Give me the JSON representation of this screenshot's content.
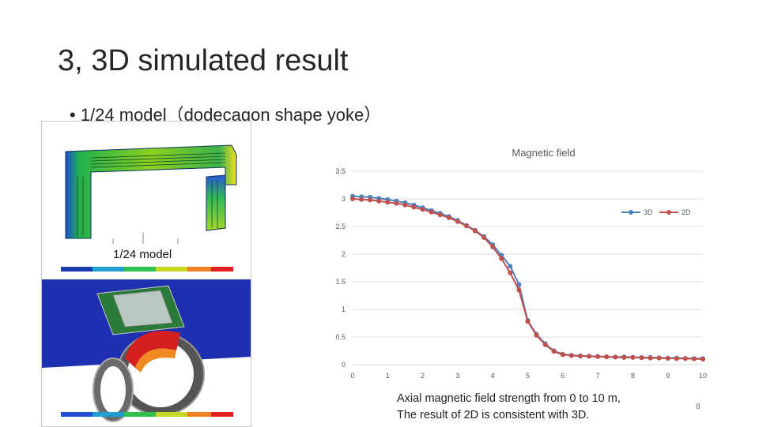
{
  "slide": {
    "title": "3, 3D simulated result",
    "bullet": "• 1/24 model（dodecagon shape yoke）",
    "model_label": "1/24 model",
    "caption_line1": "Axial magnetic field strength from 0 to 10 m,",
    "caption_line2": "The result of 2D is consistent with 3D.",
    "page_number": "8"
  },
  "colors": {
    "series_3d": "#4f81bd",
    "series_2d": "#c0504d",
    "grid": "#d9d9d9",
    "axis_text": "#595959"
  },
  "chart_data": {
    "type": "line",
    "title": "Magnetic field",
    "xlabel": "",
    "ylabel": "",
    "xlim": [
      0,
      10
    ],
    "ylim": [
      0,
      3.5
    ],
    "x_ticks": [
      "0",
      "1",
      "2",
      "3",
      "4",
      "5",
      "6",
      "7",
      "8",
      "9",
      "10"
    ],
    "y_ticks": [
      "0",
      "0.5",
      "1",
      "1.5",
      "2",
      "2.5",
      "3",
      "3.5"
    ],
    "grid": "horizontal",
    "legend_position": "right",
    "x": [
      0,
      0.25,
      0.5,
      0.75,
      1,
      1.25,
      1.5,
      1.75,
      2,
      2.25,
      2.5,
      2.75,
      3,
      3.25,
      3.5,
      3.75,
      4,
      4.25,
      4.5,
      4.75,
      5,
      5.25,
      5.5,
      5.75,
      6,
      6.25,
      6.5,
      6.75,
      7,
      7.25,
      7.5,
      7.75,
      8,
      8.25,
      8.5,
      8.75,
      9,
      9.25,
      9.5,
      9.75,
      10
    ],
    "series": [
      {
        "name": "3D",
        "values": [
          3.05,
          3.04,
          3.03,
          3.01,
          2.99,
          2.96,
          2.93,
          2.89,
          2.84,
          2.79,
          2.74,
          2.68,
          2.61,
          2.52,
          2.43,
          2.32,
          2.17,
          1.98,
          1.78,
          1.45,
          0.8,
          0.55,
          0.38,
          0.25,
          0.19,
          0.17,
          0.16,
          0.155,
          0.15,
          0.145,
          0.14,
          0.14,
          0.135,
          0.13,
          0.13,
          0.125,
          0.12,
          0.12,
          0.115,
          0.11,
          0.11
        ]
      },
      {
        "name": "2D",
        "values": [
          3.0,
          2.99,
          2.98,
          2.96,
          2.94,
          2.92,
          2.89,
          2.85,
          2.81,
          2.76,
          2.71,
          2.66,
          2.59,
          2.51,
          2.42,
          2.3,
          2.13,
          1.92,
          1.66,
          1.35,
          0.78,
          0.53,
          0.36,
          0.24,
          0.18,
          0.165,
          0.155,
          0.15,
          0.145,
          0.14,
          0.135,
          0.13,
          0.13,
          0.125,
          0.12,
          0.12,
          0.115,
          0.11,
          0.11,
          0.105,
          0.1
        ]
      }
    ]
  }
}
